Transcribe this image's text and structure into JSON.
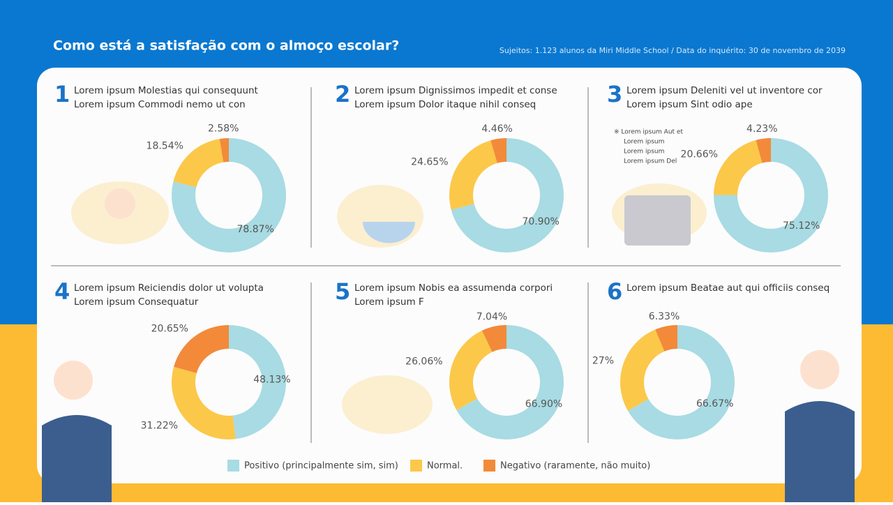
{
  "title": "Como está a satisfação com o almoço escolar?",
  "subtitle": "Sujeitos: 1.123 alunos da Miri Middle School / Data do inquérito: 30 de novembro de 2039",
  "legend": {
    "categories": [
      "Positivo (principalmente sim, sim)",
      "Normal.",
      "Negativo (raramente, não muito)"
    ],
    "colors": [
      "#a8dbe3",
      "#fcc84a",
      "#f28a3a"
    ]
  },
  "chart_data": [
    {
      "type": "donut",
      "number": 1,
      "title": [
        "Lorem ipsum Molestias qui consequunt",
        "Lorem ipsum Commodi nemo ut con"
      ],
      "values": [
        78.87,
        18.54,
        2.58
      ],
      "value_labels": [
        "78.87%",
        "18.54%",
        "2.58%"
      ]
    },
    {
      "type": "donut",
      "number": 2,
      "title": [
        "Lorem ipsum Dignissimos impedit et conse",
        "Lorem ipsum Dolor itaque nihil conseq"
      ],
      "values": [
        70.9,
        24.65,
        4.46
      ],
      "value_labels": [
        "70.90%",
        "24.65%",
        "4.46%"
      ]
    },
    {
      "type": "donut",
      "number": 3,
      "title": [
        "Lorem ipsum Deleniti vel ut inventore cor",
        "Lorem ipsum Sint odio ape"
      ],
      "note": [
        "※ Lorem ipsum Aut et",
        "Lorem ipsum",
        "Lorem ipsum",
        "Lorem ipsum Del"
      ],
      "values": [
        75.12,
        20.66,
        4.23
      ],
      "value_labels": [
        "75.12%",
        "20.66%",
        "4.23%"
      ]
    },
    {
      "type": "donut",
      "number": 4,
      "title": [
        "Lorem ipsum Reiciendis dolor ut volupta",
        "Lorem ipsum Consequatur"
      ],
      "values": [
        48.13,
        31.22,
        20.65
      ],
      "value_labels": [
        "48.13%",
        "31.22%",
        "20.65%"
      ]
    },
    {
      "type": "donut",
      "number": 5,
      "title": [
        "Lorem ipsum Nobis ea assumenda corpori",
        "Lorem ipsum F"
      ],
      "values": [
        66.9,
        26.06,
        7.04
      ],
      "value_labels": [
        "66.90%",
        "26.06%",
        "7.04%"
      ]
    },
    {
      "type": "donut",
      "number": 6,
      "title": [
        "Lorem ipsum Beatae aut qui officiis conseq"
      ],
      "values": [
        66.67,
        27,
        6.33
      ],
      "value_labels": [
        "66.67%",
        "27%",
        "6.33%"
      ]
    }
  ]
}
